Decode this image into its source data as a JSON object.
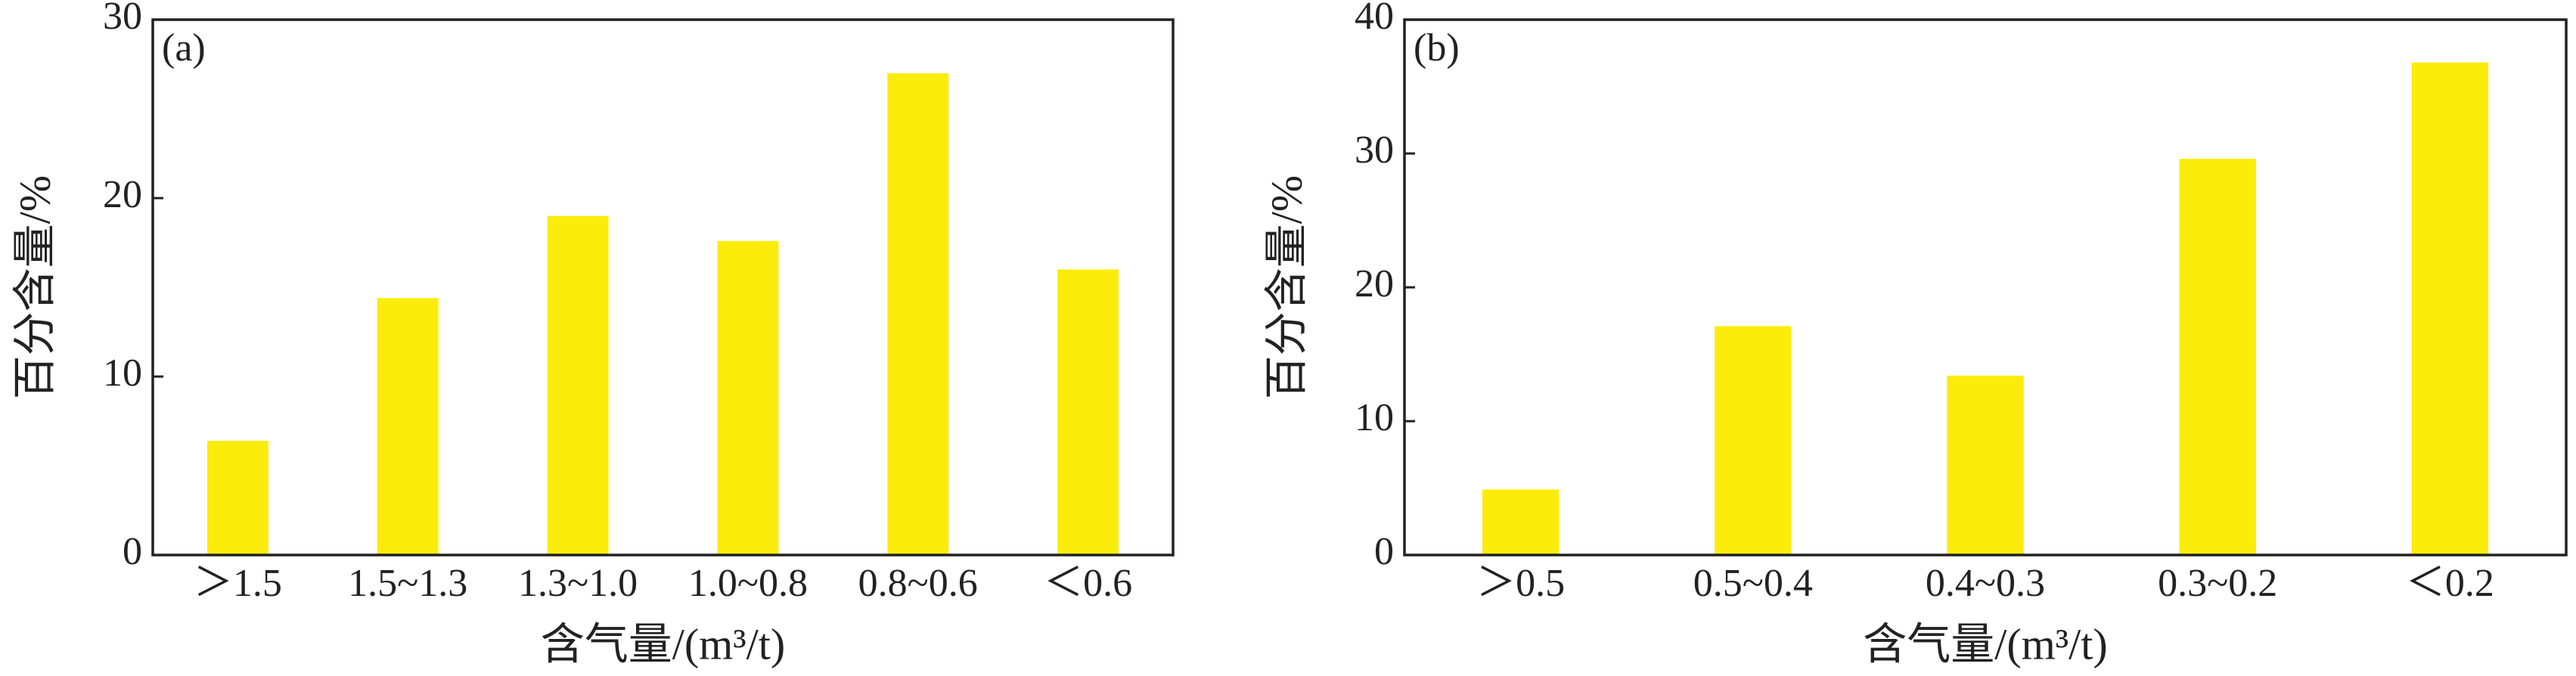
{
  "chart_data": [
    {
      "type": "bar",
      "panel_label": "(a)",
      "ylabel": "百分含量/%",
      "xlabel": "含气量/(m³/t)",
      "categories": [
        "＞1.5",
        "1.5~1.3",
        "1.3~1.0",
        "1.0~0.8",
        "0.8~0.6",
        "＜0.6"
      ],
      "values": [
        6.4,
        14.4,
        19.0,
        17.6,
        27.0,
        16.0
      ],
      "color": "#fcec0c",
      "ylim": [
        0,
        30
      ],
      "yticks": [
        0,
        10,
        20,
        30
      ]
    },
    {
      "type": "bar",
      "panel_label": "(b)",
      "ylabel": "百分含量/%",
      "xlabel": "含气量/(m³/t)",
      "categories": [
        "＞0.5",
        "0.5~0.4",
        "0.4~0.3",
        "0.3~0.2",
        "＜0.2"
      ],
      "values": [
        4.9,
        17.1,
        13.4,
        29.6,
        36.8
      ],
      "color": "#fcec0c",
      "ylim": [
        0,
        40
      ],
      "yticks": [
        0,
        10,
        20,
        30,
        40
      ]
    }
  ]
}
